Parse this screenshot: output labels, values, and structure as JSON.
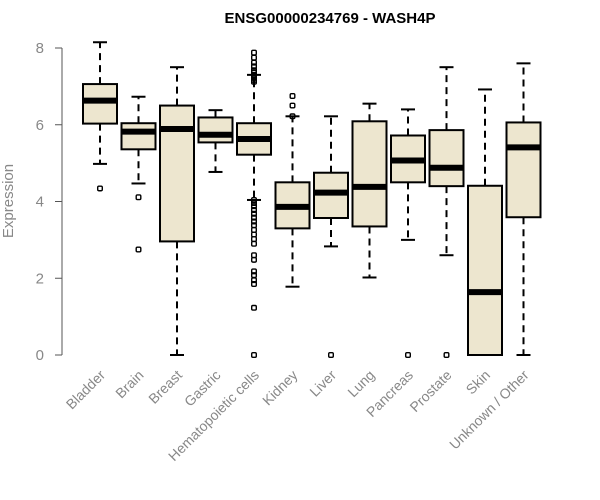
{
  "chart_data": {
    "type": "boxplot",
    "title": "ENSG00000234769 - WASH4P",
    "ylabel": "Expression",
    "xlabel": "",
    "ylim": [
      0,
      8
    ],
    "yticks": [
      0,
      2,
      4,
      6,
      8
    ],
    "box_fill": "#ede6cf",
    "outline_color": "#000000",
    "axis_color": "#555555",
    "label_color": "#888888",
    "categories": [
      "Bladder",
      "Brain",
      "Breast",
      "Gastric",
      "Hematopoietic cells",
      "Kidney",
      "Liver",
      "Lung",
      "Pancreas",
      "Prostate",
      "Skin",
      "Unknown / Other"
    ],
    "series": [
      {
        "name": "Bladder",
        "whisker_low": 4.98,
        "q1": 6.03,
        "median": 6.63,
        "q3": 7.06,
        "whisker_high": 8.15,
        "outliers": [
          4.34
        ]
      },
      {
        "name": "Brain",
        "whisker_low": 4.47,
        "q1": 5.36,
        "median": 5.82,
        "q3": 6.04,
        "whisker_high": 6.73,
        "outliers": [
          4.11,
          2.75
        ]
      },
      {
        "name": "Breast",
        "whisker_low": 0.0,
        "q1": 2.96,
        "median": 5.89,
        "q3": 6.5,
        "whisker_high": 7.5,
        "outliers": []
      },
      {
        "name": "Gastric",
        "whisker_low": 4.77,
        "q1": 5.54,
        "median": 5.74,
        "q3": 6.19,
        "whisker_high": 6.38,
        "outliers": []
      },
      {
        "name": "Hematopoietic cells",
        "whisker_low": 4.04,
        "q1": 5.22,
        "median": 5.63,
        "q3": 6.04,
        "whisker_high": 7.3,
        "outliers": [
          7.88,
          7.75,
          7.62,
          7.52,
          7.42,
          7.36,
          7.3,
          7.27,
          7.22,
          7.17,
          7.12,
          4.04,
          3.96,
          3.88,
          3.78,
          3.68,
          3.58,
          3.48,
          3.38,
          3.26,
          3.14,
          3.02,
          2.9,
          2.6,
          2.48,
          2.18,
          2.08,
          1.95,
          1.85,
          1.23,
          0.0
        ]
      },
      {
        "name": "Kidney",
        "whisker_low": 1.78,
        "q1": 3.3,
        "median": 3.86,
        "q3": 4.5,
        "whisker_high": 6.22,
        "outliers": [
          6.75,
          6.5,
          6.22
        ]
      },
      {
        "name": "Liver",
        "whisker_low": 2.83,
        "q1": 3.57,
        "median": 4.23,
        "q3": 4.75,
        "whisker_high": 6.22,
        "outliers": [
          0.0
        ]
      },
      {
        "name": "Lung",
        "whisker_low": 2.02,
        "q1": 3.35,
        "median": 4.38,
        "q3": 6.09,
        "whisker_high": 6.55,
        "outliers": []
      },
      {
        "name": "Pancreas",
        "whisker_low": 3.0,
        "q1": 4.5,
        "median": 5.07,
        "q3": 5.72,
        "whisker_high": 6.4,
        "outliers": [
          0.0
        ]
      },
      {
        "name": "Prostate",
        "whisker_low": 2.6,
        "q1": 4.4,
        "median": 4.88,
        "q3": 5.86,
        "whisker_high": 7.5,
        "outliers": [
          0.0
        ]
      },
      {
        "name": "Skin",
        "whisker_low": 0.0,
        "q1": 0.0,
        "median": 1.64,
        "q3": 4.41,
        "whisker_high": 6.92,
        "outliers": []
      },
      {
        "name": "Unknown / Other",
        "whisker_low": 0.0,
        "q1": 3.59,
        "median": 5.41,
        "q3": 6.06,
        "whisker_high": 7.6,
        "outliers": []
      }
    ]
  }
}
